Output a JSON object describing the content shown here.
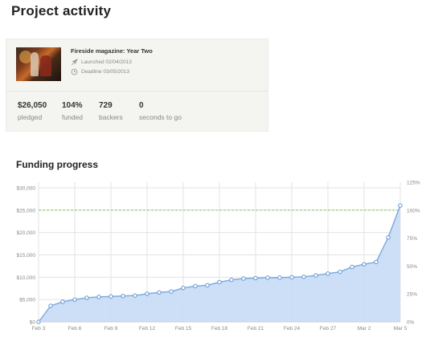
{
  "page": {
    "title": "Project activity",
    "section_title": "Funding progress"
  },
  "project": {
    "title": "Fireside magazine: Year Two",
    "launched": "Launched 02/04/2013",
    "deadline": "Deadline 03/05/2013",
    "launch_icon": "rocket-icon",
    "deadline_icon": "clock-icon"
  },
  "stats": [
    {
      "value": "$26,050",
      "label": "pledged"
    },
    {
      "value": "104%",
      "label": "funded"
    },
    {
      "value": "729",
      "label": "backers"
    },
    {
      "value": "0",
      "label": "seconds to go"
    }
  ],
  "chart_data": {
    "type": "area",
    "title": "Funding progress",
    "xlabel": "",
    "ylabel": "",
    "x_tick_labels": [
      "Feb 3",
      "Feb 6",
      "Feb 9",
      "Feb 12",
      "Feb 15",
      "Feb 18",
      "Feb 21",
      "Feb 24",
      "Feb 27",
      "Mar 2",
      "Mar 5"
    ],
    "y_tick_labels": [
      "$0",
      "$5,000",
      "$10,000",
      "$15,000",
      "$20,000",
      "$25,000",
      "$30,000"
    ],
    "y2_tick_labels": [
      "0%",
      "25%",
      "50%",
      "75%",
      "100%",
      "125%"
    ],
    "ylim": [
      0,
      31250
    ],
    "y2lim": [
      0,
      125
    ],
    "goal": 25000,
    "grid": true,
    "series": [
      {
        "x": [
          "Feb 3",
          "Feb 4",
          "Feb 5",
          "Feb 6",
          "Feb 7",
          "Feb 8",
          "Feb 9",
          "Feb 10",
          "Feb 11",
          "Feb 12",
          "Feb 13",
          "Feb 14",
          "Feb 15",
          "Feb 16",
          "Feb 17",
          "Feb 18",
          "Feb 19",
          "Feb 20",
          "Feb 21",
          "Feb 22",
          "Feb 23",
          "Feb 24",
          "Feb 25",
          "Feb 26",
          "Feb 27",
          "Feb 28",
          "Mar 1",
          "Mar 2",
          "Mar 3",
          "Mar 4",
          "Mar 5"
        ],
        "values": [
          0,
          3600,
          4500,
          5000,
          5400,
          5600,
          5700,
          5800,
          5900,
          6300,
          6600,
          6800,
          7600,
          8000,
          8200,
          8900,
          9400,
          9700,
          9800,
          9900,
          9900,
          10000,
          10100,
          10400,
          10800,
          11200,
          12300,
          12900,
          13400,
          18900,
          26050
        ]
      }
    ],
    "colors": {
      "line": "#7aa8dc",
      "fill": "#c6dcf5",
      "point": "#5e96d6",
      "goal": "#8fd17a",
      "grid": "#e3e3e3"
    }
  }
}
